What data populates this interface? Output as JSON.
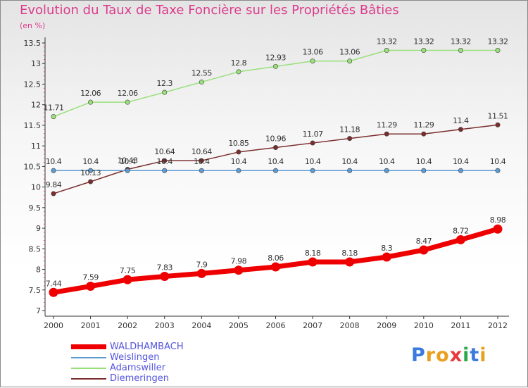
{
  "page": {
    "title": "Evolution du Taux de Taxe Foncière sur les Propriétés Bâties",
    "subtitle": "(en %)"
  },
  "logo": {
    "letters": [
      "P",
      "r",
      "o",
      "x",
      "i",
      "t",
      "i"
    ],
    "colors": [
      "#3a7be0",
      "#e8a020",
      "#e8a020",
      "#e83a3a",
      "#2aa84a",
      "#3a7be0",
      "#e8a020"
    ]
  },
  "colors": {
    "title": "#dc3c8c",
    "axis": "#333333",
    "grid_tick": "#dc3c8c"
  },
  "chart_data": {
    "type": "line",
    "title": "Evolution du Taux de Taxe Foncière sur les Propriétés Bâties",
    "subtitle": "(en %)",
    "xlabel": "",
    "ylabel": "",
    "x": [
      "2000",
      "2001",
      "2002",
      "2003",
      "2004",
      "2005",
      "2006",
      "2007",
      "2008",
      "2009",
      "2010",
      "2011",
      "2012"
    ],
    "ylim": [
      7,
      13.5
    ],
    "yticks": [
      "7",
      "7.5",
      "8",
      "8.5",
      "9",
      "9.5",
      "10",
      "10.5",
      "11",
      "11.5",
      "12",
      "12.5",
      "13",
      "13.5"
    ],
    "grid": false,
    "legend_position": "bottom-left",
    "series": [
      {
        "name": "WALDHAMBACH",
        "color": "#ee0000",
        "values": [
          7.44,
          7.59,
          7.75,
          7.83,
          7.9,
          7.98,
          8.06,
          8.18,
          8.18,
          8.3,
          8.47,
          8.72,
          8.98
        ],
        "labels": [
          "7.44",
          "7.59",
          "7.75",
          "7.83",
          "7.9",
          "7.98",
          "8.06",
          "8.18",
          "8.18",
          "8.3",
          "8.47",
          "8.72",
          "8.98"
        ]
      },
      {
        "name": "Weislingen",
        "color": "#5d9bd0",
        "values": [
          10.4,
          10.4,
          10.4,
          10.4,
          10.4,
          10.4,
          10.4,
          10.4,
          10.4,
          10.4,
          10.4,
          10.4,
          10.4
        ],
        "labels": [
          "10.4",
          "10.4",
          "10.4",
          "10.4",
          "10.4",
          "10.4",
          "10.4",
          "10.4",
          "10.4",
          "10.4",
          "10.4",
          "10.4",
          "10.4"
        ]
      },
      {
        "name": "Adamswiller",
        "color": "#99e07a",
        "values": [
          11.71,
          12.06,
          12.06,
          12.3,
          12.55,
          12.8,
          12.93,
          13.06,
          13.06,
          13.32,
          13.32,
          13.32,
          13.32
        ],
        "labels": [
          "11.71",
          "12.06",
          "12.06",
          "12.3",
          "12.55",
          "12.8",
          "12.93",
          "13.06",
          "13.06",
          "13.32",
          "13.32",
          "13.32",
          "13.32"
        ]
      },
      {
        "name": "Diemeringen",
        "color": "#7b2d2d",
        "values": [
          9.84,
          10.13,
          10.43,
          10.64,
          10.64,
          10.85,
          10.96,
          11.07,
          11.18,
          11.29,
          11.29,
          11.4,
          11.51
        ],
        "labels": [
          "9.84",
          "10.13",
          "10.43",
          "10.64",
          "10.64",
          "10.85",
          "10.96",
          "11.07",
          "11.18",
          "11.29",
          "11.29",
          "11.4",
          "11.51"
        ]
      }
    ]
  }
}
